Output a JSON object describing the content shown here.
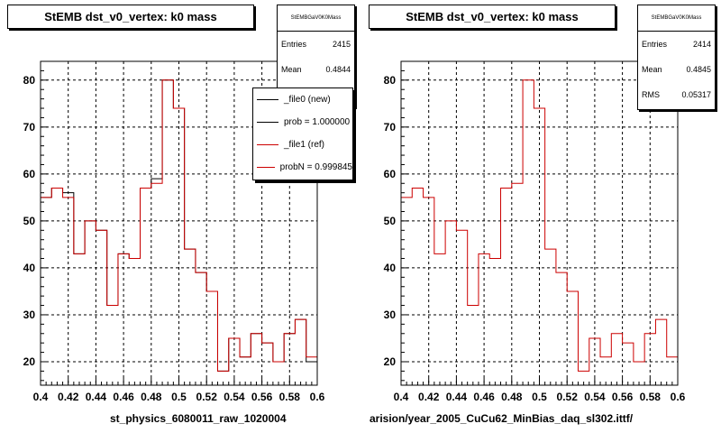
{
  "colors": {
    "new": "#000000",
    "ref": "#cc0000",
    "grid": "#000000"
  },
  "footer_text": "",
  "panels": [
    {
      "title": "StEMB dst_v0_vertex: k0 mass",
      "stats": {
        "name": "StEMBGaV0K0Mass",
        "entries_label": "Entries",
        "entries": "2415",
        "mean_label": "Mean",
        "mean": "0.4844"
      },
      "xfile": "st_physics_6080011_raw_1020004",
      "legend": [
        {
          "label": "_file0 (new)",
          "color_key": "new"
        },
        {
          "label": "prob = 1.000000",
          "color_key": "new"
        },
        {
          "label": "_file1 (ref)",
          "color_key": "ref"
        },
        {
          "label": "probN = 0.999845",
          "color_key": "ref"
        }
      ]
    },
    {
      "title": "StEMB dst_v0_vertex: k0 mass",
      "stats": {
        "name": "StEMBGaV0K0Mass",
        "entries_label": "Entries",
        "entries": "2414",
        "mean_label": "Mean",
        "mean": "0.4845",
        "rms_label": "RMS",
        "rms": "0.05317"
      },
      "xfile": "arision/year_2005_CuCu62_MinBias_daq_sl302.ittf/"
    }
  ],
  "chart_data": [
    {
      "type": "line",
      "drawstyle": "steps",
      "xlim": [
        0.4,
        0.6
      ],
      "ylim": [
        15,
        84
      ],
      "grid": true,
      "xticks": [
        0.4,
        0.42,
        0.44,
        0.46,
        0.48,
        0.5,
        0.52,
        0.54,
        0.56,
        0.58,
        0.6
      ],
      "yticks": [
        20,
        30,
        40,
        50,
        60,
        70,
        80
      ],
      "bin_edges": [
        0.4,
        0.408,
        0.416,
        0.424,
        0.432,
        0.44,
        0.448,
        0.456,
        0.464,
        0.472,
        0.48,
        0.488,
        0.496,
        0.504,
        0.512,
        0.52,
        0.528,
        0.536,
        0.544,
        0.552,
        0.56,
        0.568,
        0.576,
        0.584,
        0.592,
        0.6
      ],
      "series": [
        {
          "name": "_file0 (new)",
          "color_key": "new",
          "values": [
            55,
            57,
            56,
            43,
            50,
            48,
            32,
            43,
            42,
            57,
            59,
            80,
            74,
            44,
            39,
            35,
            18,
            25,
            21,
            26,
            24,
            20,
            26,
            29,
            20
          ]
        },
        {
          "name": "_file1 (ref)",
          "color_key": "ref",
          "values": [
            55,
            57,
            55,
            43,
            50,
            48,
            32,
            43,
            42,
            57,
            58,
            80,
            74,
            44,
            39,
            35,
            18,
            25,
            21,
            26,
            24,
            20,
            26,
            29,
            21
          ]
        }
      ]
    },
    {
      "type": "line",
      "drawstyle": "steps",
      "xlim": [
        0.4,
        0.6
      ],
      "ylim": [
        15,
        84
      ],
      "grid": true,
      "xticks": [
        0.4,
        0.42,
        0.44,
        0.46,
        0.48,
        0.5,
        0.52,
        0.54,
        0.56,
        0.58,
        0.6
      ],
      "yticks": [
        20,
        30,
        40,
        50,
        60,
        70,
        80
      ],
      "bin_edges": [
        0.4,
        0.408,
        0.416,
        0.424,
        0.432,
        0.44,
        0.448,
        0.456,
        0.464,
        0.472,
        0.48,
        0.488,
        0.496,
        0.504,
        0.512,
        0.52,
        0.528,
        0.536,
        0.544,
        0.552,
        0.56,
        0.568,
        0.576,
        0.584,
        0.592,
        0.6
      ],
      "series": [
        {
          "color_key": "ref",
          "values": [
            55,
            57,
            55,
            43,
            50,
            48,
            32,
            43,
            42,
            57,
            58,
            80,
            74,
            44,
            39,
            35,
            18,
            25,
            21,
            26,
            24,
            20,
            26,
            29,
            21
          ]
        }
      ]
    }
  ]
}
